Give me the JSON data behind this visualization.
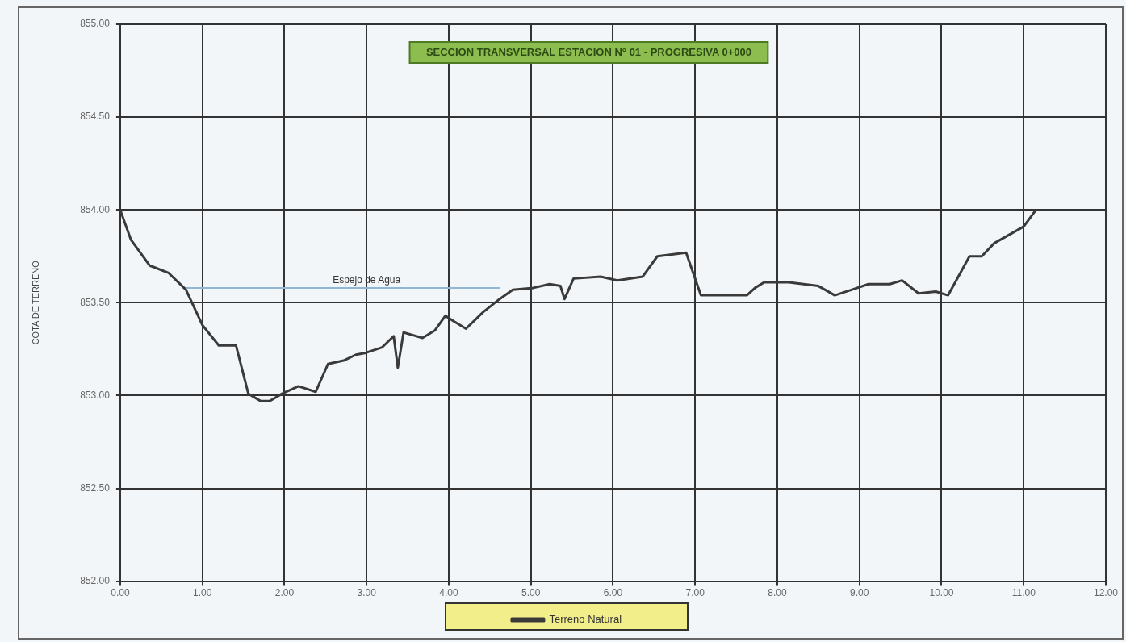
{
  "chart_data": {
    "type": "line",
    "title": "SECCION TRANSVERSAL ESTACION N° 01 - PROGRESIVA 0+000",
    "ylabel": "COTA DE TERRENO",
    "xlim": [
      0,
      12
    ],
    "xticks": [
      {
        "value": 0,
        "label": "0.00"
      },
      {
        "value": 1,
        "label": "1.00"
      },
      {
        "value": 2,
        "label": "2.00"
      },
      {
        "value": 3,
        "label": "3.00"
      },
      {
        "value": 4,
        "label": "4.00"
      },
      {
        "value": 5,
        "label": "5.00"
      },
      {
        "value": 6,
        "label": "6.00"
      },
      {
        "value": 7,
        "label": "7.00"
      },
      {
        "value": 8,
        "label": "8.00"
      },
      {
        "value": 9,
        "label": "9.00"
      },
      {
        "value": 10,
        "label": "10.00"
      },
      {
        "value": 11,
        "label": "11.00"
      },
      {
        "value": 12,
        "label": "12.00"
      }
    ],
    "ylim": [
      852,
      855
    ],
    "yticks": [
      {
        "value": 852,
        "label": "852.00"
      },
      {
        "value": 852.5,
        "label": "852.50"
      },
      {
        "value": 853,
        "label": "853.00"
      },
      {
        "value": 853.5,
        "label": "853.50"
      },
      {
        "value": 854,
        "label": "854.00"
      },
      {
        "value": 854.5,
        "label": "854.50"
      },
      {
        "value": 855,
        "label": "855.00"
      }
    ],
    "grid": true,
    "legend": "bottom",
    "marker": "none",
    "line_style": "solid",
    "annotations": [
      {
        "text": "Espejo de Agua",
        "x": 3.0,
        "y": 853.58
      }
    ],
    "series": [
      {
        "name": "Terreno Natural",
        "color": "#3a3a3a",
        "x": [
          0,
          0.13,
          0.36,
          0.59,
          0.8,
          1.0,
          1.2,
          1.41,
          1.56,
          1.71,
          1.82,
          1.97,
          2.17,
          2.38,
          2.53,
          2.73,
          2.87,
          2.99,
          3.19,
          3.33,
          3.38,
          3.45,
          3.68,
          3.83,
          3.96,
          4.06,
          4.21,
          4.42,
          4.62,
          4.78,
          5.03,
          5.23,
          5.36,
          5.41,
          5.52,
          5.85,
          6.05,
          6.36,
          6.54,
          6.89,
          7.07,
          7.28,
          7.63,
          7.73,
          7.84,
          8.14,
          8.5,
          8.7,
          8.91,
          9.11,
          9.37,
          9.52,
          9.72,
          9.93,
          10.08,
          10.34,
          10.49,
          10.64,
          11.0,
          11.15
        ],
        "values": [
          854.0,
          853.84,
          853.7,
          853.66,
          853.57,
          853.38,
          853.27,
          853.27,
          853.01,
          852.97,
          852.97,
          853.01,
          853.05,
          853.02,
          853.17,
          853.19,
          853.22,
          853.23,
          853.26,
          853.32,
          853.15,
          853.34,
          853.31,
          853.35,
          853.43,
          853.4,
          853.36,
          853.45,
          853.52,
          853.57,
          853.58,
          853.6,
          853.59,
          853.52,
          853.63,
          853.64,
          853.62,
          853.64,
          853.75,
          853.77,
          853.54,
          853.54,
          853.54,
          853.58,
          853.61,
          853.61,
          853.59,
          853.54,
          853.57,
          853.6,
          853.6,
          853.62,
          853.55,
          853.56,
          853.54,
          853.75,
          853.75,
          853.82,
          853.91,
          854.0
        ]
      },
      {
        "color": "#8fb8d8",
        "x": [
          0.8,
          4.62
        ],
        "values": [
          853.58,
          853.58
        ]
      }
    ]
  }
}
